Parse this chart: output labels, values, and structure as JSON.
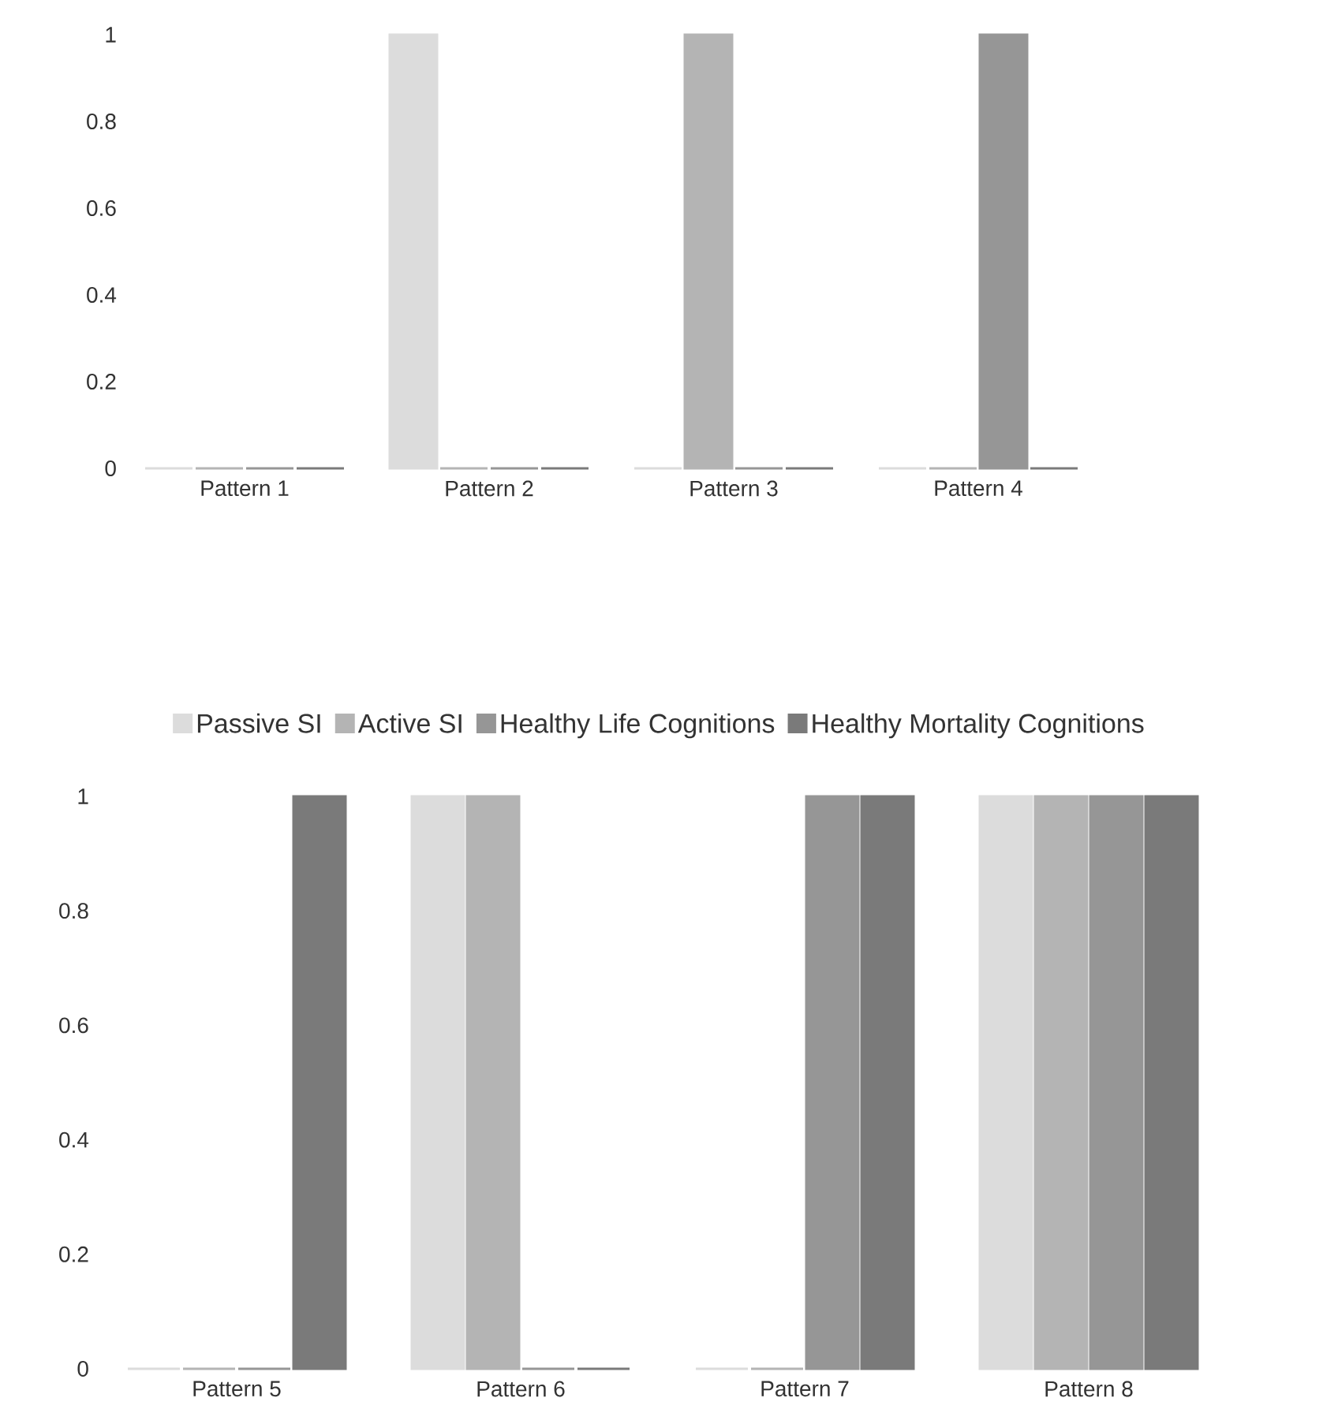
{
  "chart_data": [
    {
      "type": "bar",
      "categories": [
        "Pattern 1",
        "Pattern 2",
        "Pattern 3",
        "Pattern 4"
      ],
      "ylim": [
        0,
        1
      ],
      "yticks": [
        0,
        0.2,
        0.4,
        0.6,
        0.8,
        1
      ],
      "legend": "bottom",
      "grid": false,
      "series": [
        {
          "name": "Passive SI",
          "color": "#dcdcdc",
          "values": [
            0,
            1,
            0,
            0
          ]
        },
        {
          "name": "Active SI",
          "color": "#b4b4b4",
          "values": [
            0,
            0,
            1,
            0
          ]
        },
        {
          "name": "Healthy Life Cognitions",
          "color": "#969696",
          "values": [
            0,
            0,
            0,
            1
          ]
        },
        {
          "name": "Healthy Mortality Cognitions",
          "color": "#7a7a7a",
          "values": [
            0,
            0,
            0,
            0
          ]
        }
      ]
    },
    {
      "type": "bar",
      "categories": [
        "Pattern 5",
        "Pattern 6",
        "Pattern 7",
        "Pattern 8"
      ],
      "ylim": [
        0,
        1
      ],
      "yticks": [
        0,
        0.2,
        0.4,
        0.6,
        0.8,
        1
      ],
      "grid": false,
      "series": [
        {
          "color": "#dcdcdc",
          "values": [
            0,
            1,
            0,
            1
          ]
        },
        {
          "color": "#b4b4b4",
          "values": [
            0,
            1,
            0,
            1
          ]
        },
        {
          "color": "#969696",
          "values": [
            0,
            0,
            1,
            1
          ]
        },
        {
          "color": "#7a7a7a",
          "values": [
            1,
            0,
            1,
            1
          ]
        }
      ]
    }
  ]
}
